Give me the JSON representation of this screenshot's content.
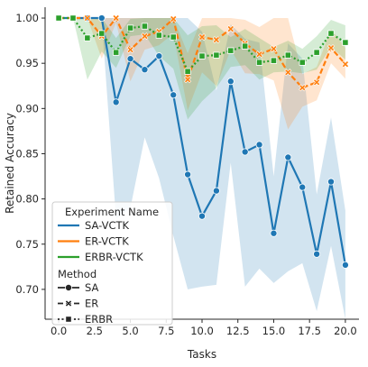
{
  "chart_data": {
    "type": "line",
    "xlabel": "Tasks",
    "ylabel": "Retained Accuracy",
    "xlim": [
      -0.95,
      20.95
    ],
    "ylim": [
      0.667,
      1.012
    ],
    "x_ticks": [
      "0.0",
      "2.5",
      "5.0",
      "7.5",
      "10.0",
      "12.5",
      "15.0",
      "17.5",
      "20.0"
    ],
    "x_tick_values": [
      0,
      2.5,
      5,
      7.5,
      10,
      12.5,
      15,
      17.5,
      20
    ],
    "y_ticks": [
      "0.70",
      "0.75",
      "0.80",
      "0.85",
      "0.90",
      "0.95",
      "1.00"
    ],
    "y_tick_values": [
      0.7,
      0.75,
      0.8,
      0.85,
      0.9,
      0.95,
      1.0
    ],
    "grid": false,
    "legend": {
      "placement": "lower-left",
      "title": "Experiment Name",
      "method_title": "Method",
      "entries": [
        {
          "label": "SA-VCTK",
          "color": "#1f77b4"
        },
        {
          "label": "ER-VCTK",
          "color": "#ff7f0e"
        },
        {
          "label": "ERBR-VCTK",
          "color": "#2ca02c"
        }
      ],
      "methods": [
        {
          "label": "SA",
          "marker": "circle",
          "dash": "solid"
        },
        {
          "label": "ER",
          "marker": "x",
          "dash": "dashed"
        },
        {
          "label": "ERBR",
          "marker": "square",
          "dash": "dotted"
        }
      ]
    },
    "series": [
      {
        "name": "SA-VCTK",
        "color": "#1f77b4",
        "marker": "circle",
        "dash": "solid",
        "x": [
          0,
          1,
          2,
          3,
          4,
          5,
          6,
          7,
          8,
          9,
          10,
          11,
          12,
          13,
          14,
          15,
          16,
          17,
          18,
          19,
          20
        ],
        "values": [
          1.0,
          1.0,
          1.0,
          1.0,
          0.907,
          0.955,
          0.943,
          0.958,
          0.915,
          0.827,
          0.781,
          0.809,
          0.93,
          0.852,
          0.86,
          0.762,
          0.846,
          0.813,
          0.739,
          0.819,
          0.727
        ],
        "lower": [
          1.0,
          1.0,
          1.0,
          0.998,
          0.778,
          0.79,
          0.868,
          0.823,
          0.759,
          0.7,
          0.703,
          0.705,
          0.84,
          0.703,
          0.723,
          0.707,
          0.72,
          0.729,
          0.676,
          0.748,
          0.667
        ],
        "upper": [
          1.0,
          1.0,
          1.0,
          1.0,
          1.0,
          1.0,
          1.0,
          1.0,
          1.0,
          1.0,
          0.985,
          0.92,
          0.993,
          0.977,
          0.973,
          0.825,
          0.972,
          0.955,
          0.805,
          0.89,
          0.787
        ]
      },
      {
        "name": "ER-VCTK",
        "color": "#ff7f0e",
        "marker": "x",
        "dash": "dashed",
        "x": [
          0,
          1,
          2,
          3,
          4,
          5,
          6,
          7,
          8,
          9,
          10,
          11,
          12,
          13,
          14,
          15,
          16,
          17,
          18,
          19,
          20
        ],
        "values": [
          1.0,
          1.0,
          1.0,
          0.98,
          1.0,
          0.965,
          0.98,
          0.985,
          0.999,
          0.932,
          0.979,
          0.976,
          0.988,
          0.972,
          0.96,
          0.966,
          0.94,
          0.923,
          0.929,
          0.967,
          0.949
        ],
        "lower": [
          1.0,
          1.0,
          1.0,
          0.955,
          0.995,
          0.93,
          0.965,
          0.97,
          0.983,
          0.898,
          0.94,
          0.925,
          0.965,
          0.939,
          0.938,
          0.931,
          0.877,
          0.902,
          0.909,
          0.95,
          0.933
        ],
        "upper": [
          1.0,
          1.0,
          1.0,
          1.0,
          1.0,
          1.0,
          1.0,
          1.0,
          1.0,
          0.961,
          1.0,
          1.0,
          1.0,
          0.998,
          0.99,
          1.0,
          1.0,
          0.938,
          0.946,
          0.988,
          0.967
        ]
      },
      {
        "name": "ERBR-VCTK",
        "color": "#2ca02c",
        "marker": "square",
        "dash": "dotted",
        "x": [
          0,
          1,
          2,
          3,
          4,
          5,
          6,
          7,
          8,
          9,
          10,
          11,
          12,
          13,
          14,
          15,
          16,
          17,
          18,
          19,
          20
        ],
        "values": [
          1.0,
          1.0,
          0.978,
          0.983,
          0.962,
          0.989,
          0.991,
          0.981,
          0.979,
          0.941,
          0.958,
          0.959,
          0.964,
          0.969,
          0.951,
          0.953,
          0.959,
          0.951,
          0.962,
          0.983,
          0.973
        ],
        "lower": [
          1.0,
          1.0,
          0.932,
          0.963,
          0.945,
          0.98,
          0.982,
          0.958,
          0.944,
          0.888,
          0.908,
          0.923,
          0.946,
          0.948,
          0.932,
          0.94,
          0.941,
          0.939,
          0.943,
          0.968,
          0.954
        ],
        "upper": [
          1.0,
          1.0,
          1.0,
          1.0,
          0.978,
          0.999,
          1.0,
          1.0,
          1.0,
          0.981,
          0.991,
          0.992,
          0.979,
          0.988,
          0.978,
          0.968,
          0.975,
          0.966,
          0.98,
          0.998,
          0.992
        ]
      }
    ]
  }
}
